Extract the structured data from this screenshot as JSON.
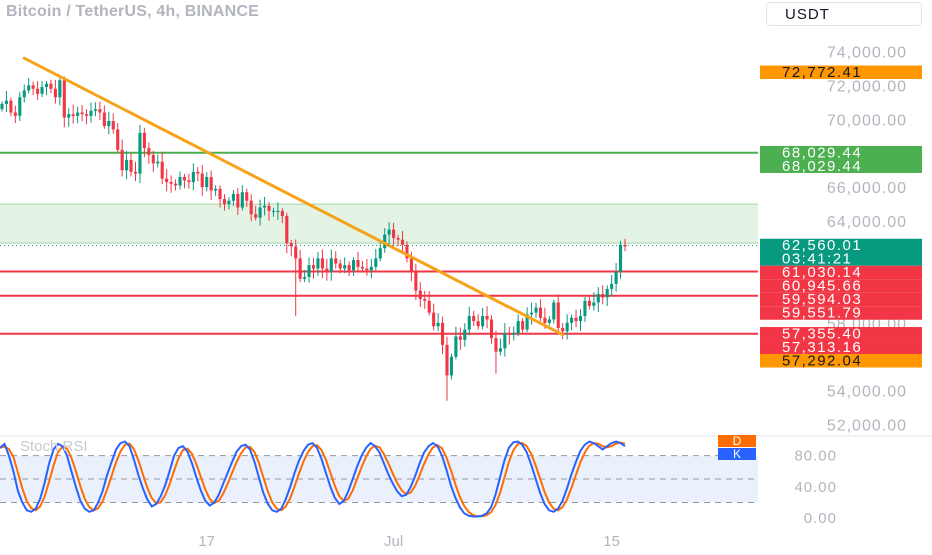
{
  "header": {
    "title": "Bitcoin / TetherUS, 4h, BINANCE",
    "currency": "USDT"
  },
  "colors": {
    "up": "#089981",
    "down": "#f23645",
    "trendline": "#f7a21b",
    "support_green": "#4caf50",
    "support_red": "#f23645",
    "zone_fill": "#e3f3e4",
    "rsi_k": "#2962ff",
    "rsi_d": "#ff6d00",
    "axis_text": "#b2b5be"
  },
  "chart_data": {
    "type": "candlestick",
    "title": "Bitcoin / TetherUS, 4h, BINANCE",
    "price_axis": {
      "ticks": [
        "74,000.00",
        "72,000.00",
        "70,000.00",
        "66,000.00",
        "64,000.00",
        "58,000.00",
        "54,000.00",
        "52,000.00"
      ],
      "tick_values": [
        74000,
        72000,
        70000,
        66000,
        64000,
        58000,
        54000,
        52000
      ],
      "ylim": [
        51800,
        75500
      ]
    },
    "time_axis": {
      "ticks": [
        "17",
        "Jul",
        "15"
      ],
      "xlim": [
        0,
        140
      ]
    },
    "price_labels": [
      {
        "text": "72,772.41",
        "value": 72772.41,
        "color": "#ff9800",
        "text_color": "#131722"
      },
      {
        "text": "68,029.44",
        "value": 68029.44,
        "color": "#4caf50",
        "text_color": "#ffffff",
        "row": 0
      },
      {
        "text": "68,029.44",
        "value": 68029.44,
        "color": "#4caf50",
        "text_color": "#ffffff",
        "row": 1
      },
      {
        "text": "62,560.01",
        "value": 62560.01,
        "color": "#089981",
        "text_color": "#ffffff",
        "sub": "03:41:21"
      },
      {
        "text": "61,030.14",
        "value": 61030.14,
        "color": "#f23645",
        "text_color": "#ffffff"
      },
      {
        "text": "60,945.66",
        "value": 60945.66,
        "color": "#f23645",
        "text_color": "#ffffff"
      },
      {
        "text": "59,594.03",
        "value": 59594.03,
        "color": "#f23645",
        "text_color": "#ffffff"
      },
      {
        "text": "59,551.79",
        "value": 59551.79,
        "color": "#f23645",
        "text_color": "#ffffff"
      },
      {
        "text": "57,355.40",
        "value": 57355.4,
        "color": "#f23645",
        "text_color": "#ffffff"
      },
      {
        "text": "57,313.16",
        "value": 57313.16,
        "color": "#f23645",
        "text_color": "#ffffff"
      },
      {
        "text": "57,292.04",
        "value": 57292.04,
        "color": "#ff9800",
        "text_color": "#131722"
      }
    ],
    "horizontal_lines": [
      {
        "value": 68029.44,
        "color": "#4caf50"
      },
      {
        "value": 61030.14,
        "color": "#f23645"
      },
      {
        "value": 59594.03,
        "color": "#f23645"
      },
      {
        "value": 57355.4,
        "color": "#f23645"
      }
    ],
    "last_price": 62560.01,
    "zone": {
      "from": 62700,
      "to": 65000
    },
    "trendline": {
      "x1": 5,
      "y1": 73600,
      "x2": 126,
      "y2": 57300
    },
    "closes": [
      70900,
      71100,
      70400,
      70200,
      71300,
      71700,
      72000,
      71800,
      71500,
      71900,
      72100,
      71800,
      71300,
      72300,
      70100,
      70300,
      70200,
      70400,
      70300,
      70200,
      70500,
      70600,
      70400,
      69600,
      69900,
      69400,
      68200,
      67000,
      67600,
      66900,
      66800,
      69200,
      68300,
      67900,
      67400,
      67500,
      66500,
      66300,
      66200,
      66100,
      66600,
      66400,
      66300,
      66900,
      66800,
      66000,
      66600,
      65800,
      65900,
      65300,
      65000,
      65200,
      65600,
      64800,
      65700,
      65200,
      64400,
      64200,
      64800,
      64900,
      64600,
      64600,
      64600,
      64300,
      62700,
      62500,
      61800,
      60600,
      60700,
      61400,
      61200,
      61800,
      61200,
      61000,
      61800,
      61500,
      61200,
      61400,
      61100,
      61700,
      61300,
      61200,
      61100,
      61300,
      61800,
      62400,
      63200,
      63500,
      63000,
      62900,
      62600,
      61800,
      61000,
      59900,
      59400,
      59300,
      58600,
      57800,
      58000,
      56700,
      54900,
      56000,
      57200,
      57000,
      57600,
      58400,
      58100,
      57800,
      58400,
      58200,
      57100,
      56300,
      56500,
      57400,
      57300,
      57400,
      58100,
      57600,
      58500,
      58600,
      58900,
      58300,
      58000,
      58200,
      59200,
      57700,
      57500,
      58000,
      58300,
      58100,
      58400,
      59300,
      59000,
      59200,
      59700,
      59500,
      60000,
      60300,
      61000,
      62600,
      62500
    ]
  },
  "rsi": {
    "title": "Stoch RSI",
    "ticks": [
      "80.00",
      "40.00",
      "0.00"
    ],
    "tick_values": [
      80,
      40,
      0
    ],
    "band": [
      20,
      80
    ],
    "ylim": [
      -5,
      100
    ],
    "d_label": "D",
    "k_label": "K",
    "k_values": [
      90,
      95,
      80,
      60,
      35,
      20,
      10,
      8,
      12,
      25,
      45,
      70,
      88,
      95,
      92,
      80,
      60,
      40,
      22,
      12,
      8,
      10,
      20,
      35,
      55,
      72,
      88,
      96,
      98,
      92,
      75,
      55,
      38,
      24,
      15,
      18,
      28,
      42,
      60,
      80,
      90,
      92,
      85,
      70,
      52,
      35,
      22,
      16,
      20,
      30,
      44,
      58,
      72,
      85,
      92,
      94,
      88,
      72,
      52,
      32,
      18,
      10,
      8,
      12,
      24,
      40,
      58,
      74,
      86,
      94,
      96,
      90,
      76,
      58,
      40,
      26,
      18,
      22,
      34,
      50,
      66,
      80,
      90,
      96,
      92,
      84,
      70,
      56,
      44,
      34,
      28,
      30,
      40,
      54,
      70,
      84,
      92,
      96,
      92,
      80,
      62,
      42,
      26,
      14,
      6,
      3,
      2,
      2,
      3,
      6,
      14,
      30,
      52,
      74,
      90,
      97,
      98,
      94,
      84,
      68,
      50,
      32,
      18,
      10,
      8,
      12,
      22,
      38,
      56,
      72,
      86,
      94,
      98,
      96,
      92,
      88,
      92,
      96,
      98,
      96,
      92
    ]
  }
}
